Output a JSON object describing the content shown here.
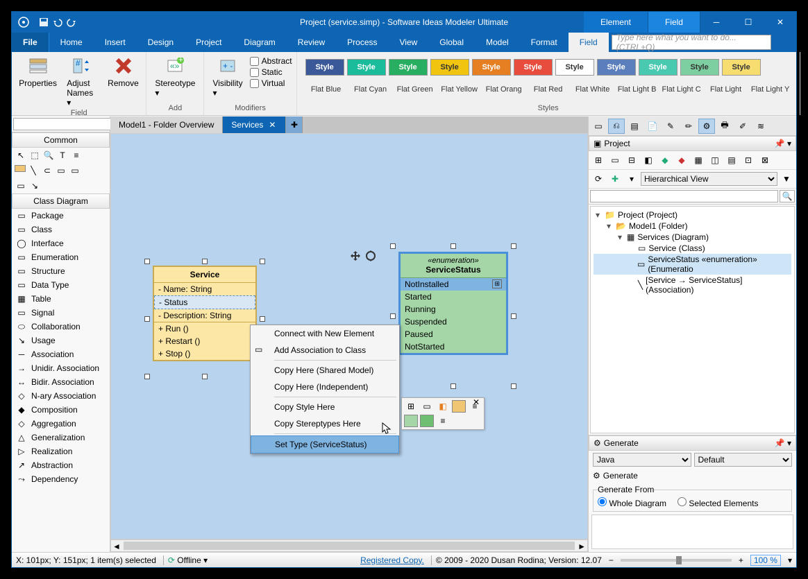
{
  "title": "Project (service.simp)  - Software Ideas Modeler Ultimate",
  "context_tabs": [
    "Element",
    "Field"
  ],
  "context_active": 1,
  "menu": [
    "File",
    "Home",
    "Insert",
    "Design",
    "Project",
    "Diagram",
    "Review",
    "Process",
    "View",
    "Global",
    "Model",
    "Format",
    "Field"
  ],
  "menu_active": 12,
  "search_placeholder": "Type here what you want to do...  (CTRL+Q)",
  "ribbon": {
    "groups": [
      {
        "label": "Field",
        "buttons": [
          {
            "name": "properties",
            "text": "Properties"
          },
          {
            "name": "adjust-names",
            "text": "Adjust\nNames"
          },
          {
            "name": "remove",
            "text": "Remove"
          }
        ]
      },
      {
        "label": "Add",
        "buttons": [
          {
            "name": "stereotype",
            "text": "Stereotype"
          }
        ]
      },
      {
        "label": "Modifiers",
        "buttons": [
          {
            "name": "visibility",
            "text": "Visibility"
          }
        ],
        "checks": [
          "Abstract",
          "Static",
          "Virtual"
        ]
      }
    ],
    "styles_label": "Styles",
    "styles": [
      {
        "name": "Flat Blue",
        "bg": "#3b5998",
        "fg": "#fff"
      },
      {
        "name": "Flat Cyan",
        "bg": "#1abc9c",
        "fg": "#fff"
      },
      {
        "name": "Flat Green",
        "bg": "#27ae60",
        "fg": "#fff"
      },
      {
        "name": "Flat Yellow",
        "bg": "#f1c40f",
        "fg": "#333"
      },
      {
        "name": "Flat Orang",
        "bg": "#e67e22",
        "fg": "#fff"
      },
      {
        "name": "Flat Red",
        "bg": "#e74c3c",
        "fg": "#fff"
      },
      {
        "name": "Flat White",
        "bg": "#ffffff",
        "fg": "#333"
      },
      {
        "name": "Flat Light B",
        "bg": "#5b7ebd",
        "fg": "#fff"
      },
      {
        "name": "Flat Light C",
        "bg": "#48c9b0",
        "fg": "#fff"
      },
      {
        "name": "Flat Light",
        "bg": "#7dcea0",
        "fg": "#333"
      },
      {
        "name": "Flat Light Y",
        "bg": "#f7dc6f",
        "fg": "#333"
      }
    ],
    "style_btn_label": "Style"
  },
  "left": {
    "common": "Common",
    "classdiag": "Class Diagram",
    "items": [
      "Package",
      "Class",
      "Interface",
      "Enumeration",
      "Structure",
      "Data Type",
      "Table",
      "Signal",
      "Collaboration",
      "Usage",
      "Association",
      "Unidir. Association",
      "Bidir. Association",
      "N-ary Association",
      "Composition",
      "Aggregation",
      "Generalization",
      "Realization",
      "Abstraction",
      "Dependency"
    ]
  },
  "doctabs": [
    {
      "label": "Model1 - Folder Overview",
      "active": false
    },
    {
      "label": "Services",
      "active": true
    }
  ],
  "service": {
    "title": "Service",
    "attrs": [
      "- Name: String",
      "- Status",
      "- Description: String"
    ],
    "attrs_sel": 1,
    "ops": [
      "+ Run ()",
      "+ Restart ()",
      "+ Stop ()"
    ]
  },
  "enum": {
    "stereo": "«enumeration»",
    "title": "ServiceStatus",
    "vals": [
      "NotInstalled",
      "Started",
      "Running",
      "Suspended",
      "Paused",
      "NotStarted"
    ],
    "sel": 0
  },
  "contextmenu": [
    {
      "t": "Connect with New Element"
    },
    {
      "t": "Add Association to Class",
      "icon": true
    },
    {
      "sep": true
    },
    {
      "t": "Copy Here (Shared Model)"
    },
    {
      "t": "Copy Here (Independent)"
    },
    {
      "sep": true
    },
    {
      "t": "Copy Style Here"
    },
    {
      "t": "Copy Stereptypes Here"
    },
    {
      "sep": true
    },
    {
      "t": "Set Type (ServiceStatus)",
      "hl": true
    }
  ],
  "project": {
    "header": "Project",
    "viewmode": "Hierarchical View",
    "tree": [
      {
        "d": 0,
        "exp": "▾",
        "ic": "proj",
        "t": "Project (Project)"
      },
      {
        "d": 1,
        "exp": "▾",
        "ic": "fold",
        "t": "Model1 (Folder)"
      },
      {
        "d": 2,
        "exp": "▾",
        "ic": "diag",
        "t": "Services (Diagram)"
      },
      {
        "d": 3,
        "exp": "",
        "ic": "cls",
        "t": "Service (Class)"
      },
      {
        "d": 3,
        "exp": "",
        "ic": "enum",
        "t": "ServiceStatus «enumeration» (Enumeratio",
        "sel": true
      },
      {
        "d": 3,
        "exp": "",
        "ic": "assoc",
        "t": "[Service → ServiceStatus] (Association)"
      }
    ]
  },
  "generate": {
    "header": "Generate",
    "lang": "Java",
    "template": "Default",
    "btn": "Generate",
    "from_label": "Generate From",
    "opt1": "Whole Diagram",
    "opt2": "Selected Elements"
  },
  "status": {
    "coords": "X: 101px; Y: 151px; 1 item(s) selected",
    "offline": "Offline",
    "reg": "Registered Copy.",
    "copy": "© 2009 - 2020 Dusan Rodina; Version: 12.07",
    "zoom": "100 %"
  }
}
